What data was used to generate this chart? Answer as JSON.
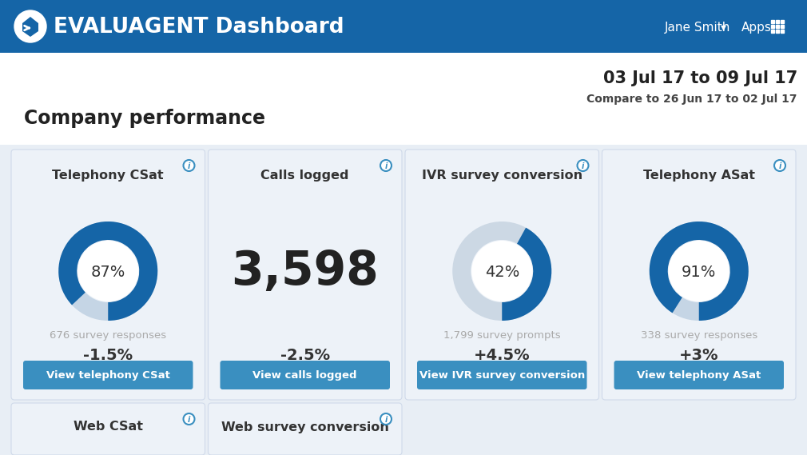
{
  "header_bg": "#1565a7",
  "header_text": "EVALUAGENT Dashboard",
  "body_bg": "#e8eef5",
  "date_range": "03 Jul 17 to 09 Jul 17",
  "compare_range": "Compare to 26 Jun 17 to 02 Jul 17",
  "section_title": "Company performance",
  "card_bg": "#edf2f8",
  "card_border": "#d0daea",
  "cards": [
    {
      "title": "Telephony CSat",
      "type": "donut",
      "value": 87,
      "center_label": "87%",
      "sub_text": "676 survey responses",
      "change": "-1.5%",
      "button_text": "View telephony CSat",
      "donut_color": "#1565a7",
      "donut_bg": "#c5d5e5"
    },
    {
      "title": "Calls logged",
      "type": "number",
      "big_number": "3,598",
      "sub_text": "",
      "change": "-2.5%",
      "button_text": "View calls logged",
      "donut_color": "#1565a7",
      "donut_bg": "#c5d5e5"
    },
    {
      "title": "IVR survey conversion",
      "type": "donut",
      "value": 42,
      "center_label": "42%",
      "sub_text": "1,799 survey prompts",
      "change": "+4.5%",
      "button_text": "View IVR survey conversion",
      "donut_color": "#1565a7",
      "donut_bg": "#ccd8e4"
    },
    {
      "title": "Telephony ASat",
      "type": "donut",
      "value": 91,
      "center_label": "91%",
      "sub_text": "338 survey responses",
      "change": "+3%",
      "button_text": "View telephony ASat",
      "donut_color": "#1565a7",
      "donut_bg": "#c5d5e5"
    }
  ],
  "bottom_cards": [
    {
      "title": "Web CSat"
    },
    {
      "title": "Web survey conversion"
    }
  ],
  "button_color": "#3a8fc0",
  "button_text_color": "#ffffff",
  "info_icon_color": "#3a8fc0",
  "sub_text_color": "#aaaaaa",
  "change_color": "#333333",
  "card_title_color": "#333333",
  "section_title_color": "#222222"
}
